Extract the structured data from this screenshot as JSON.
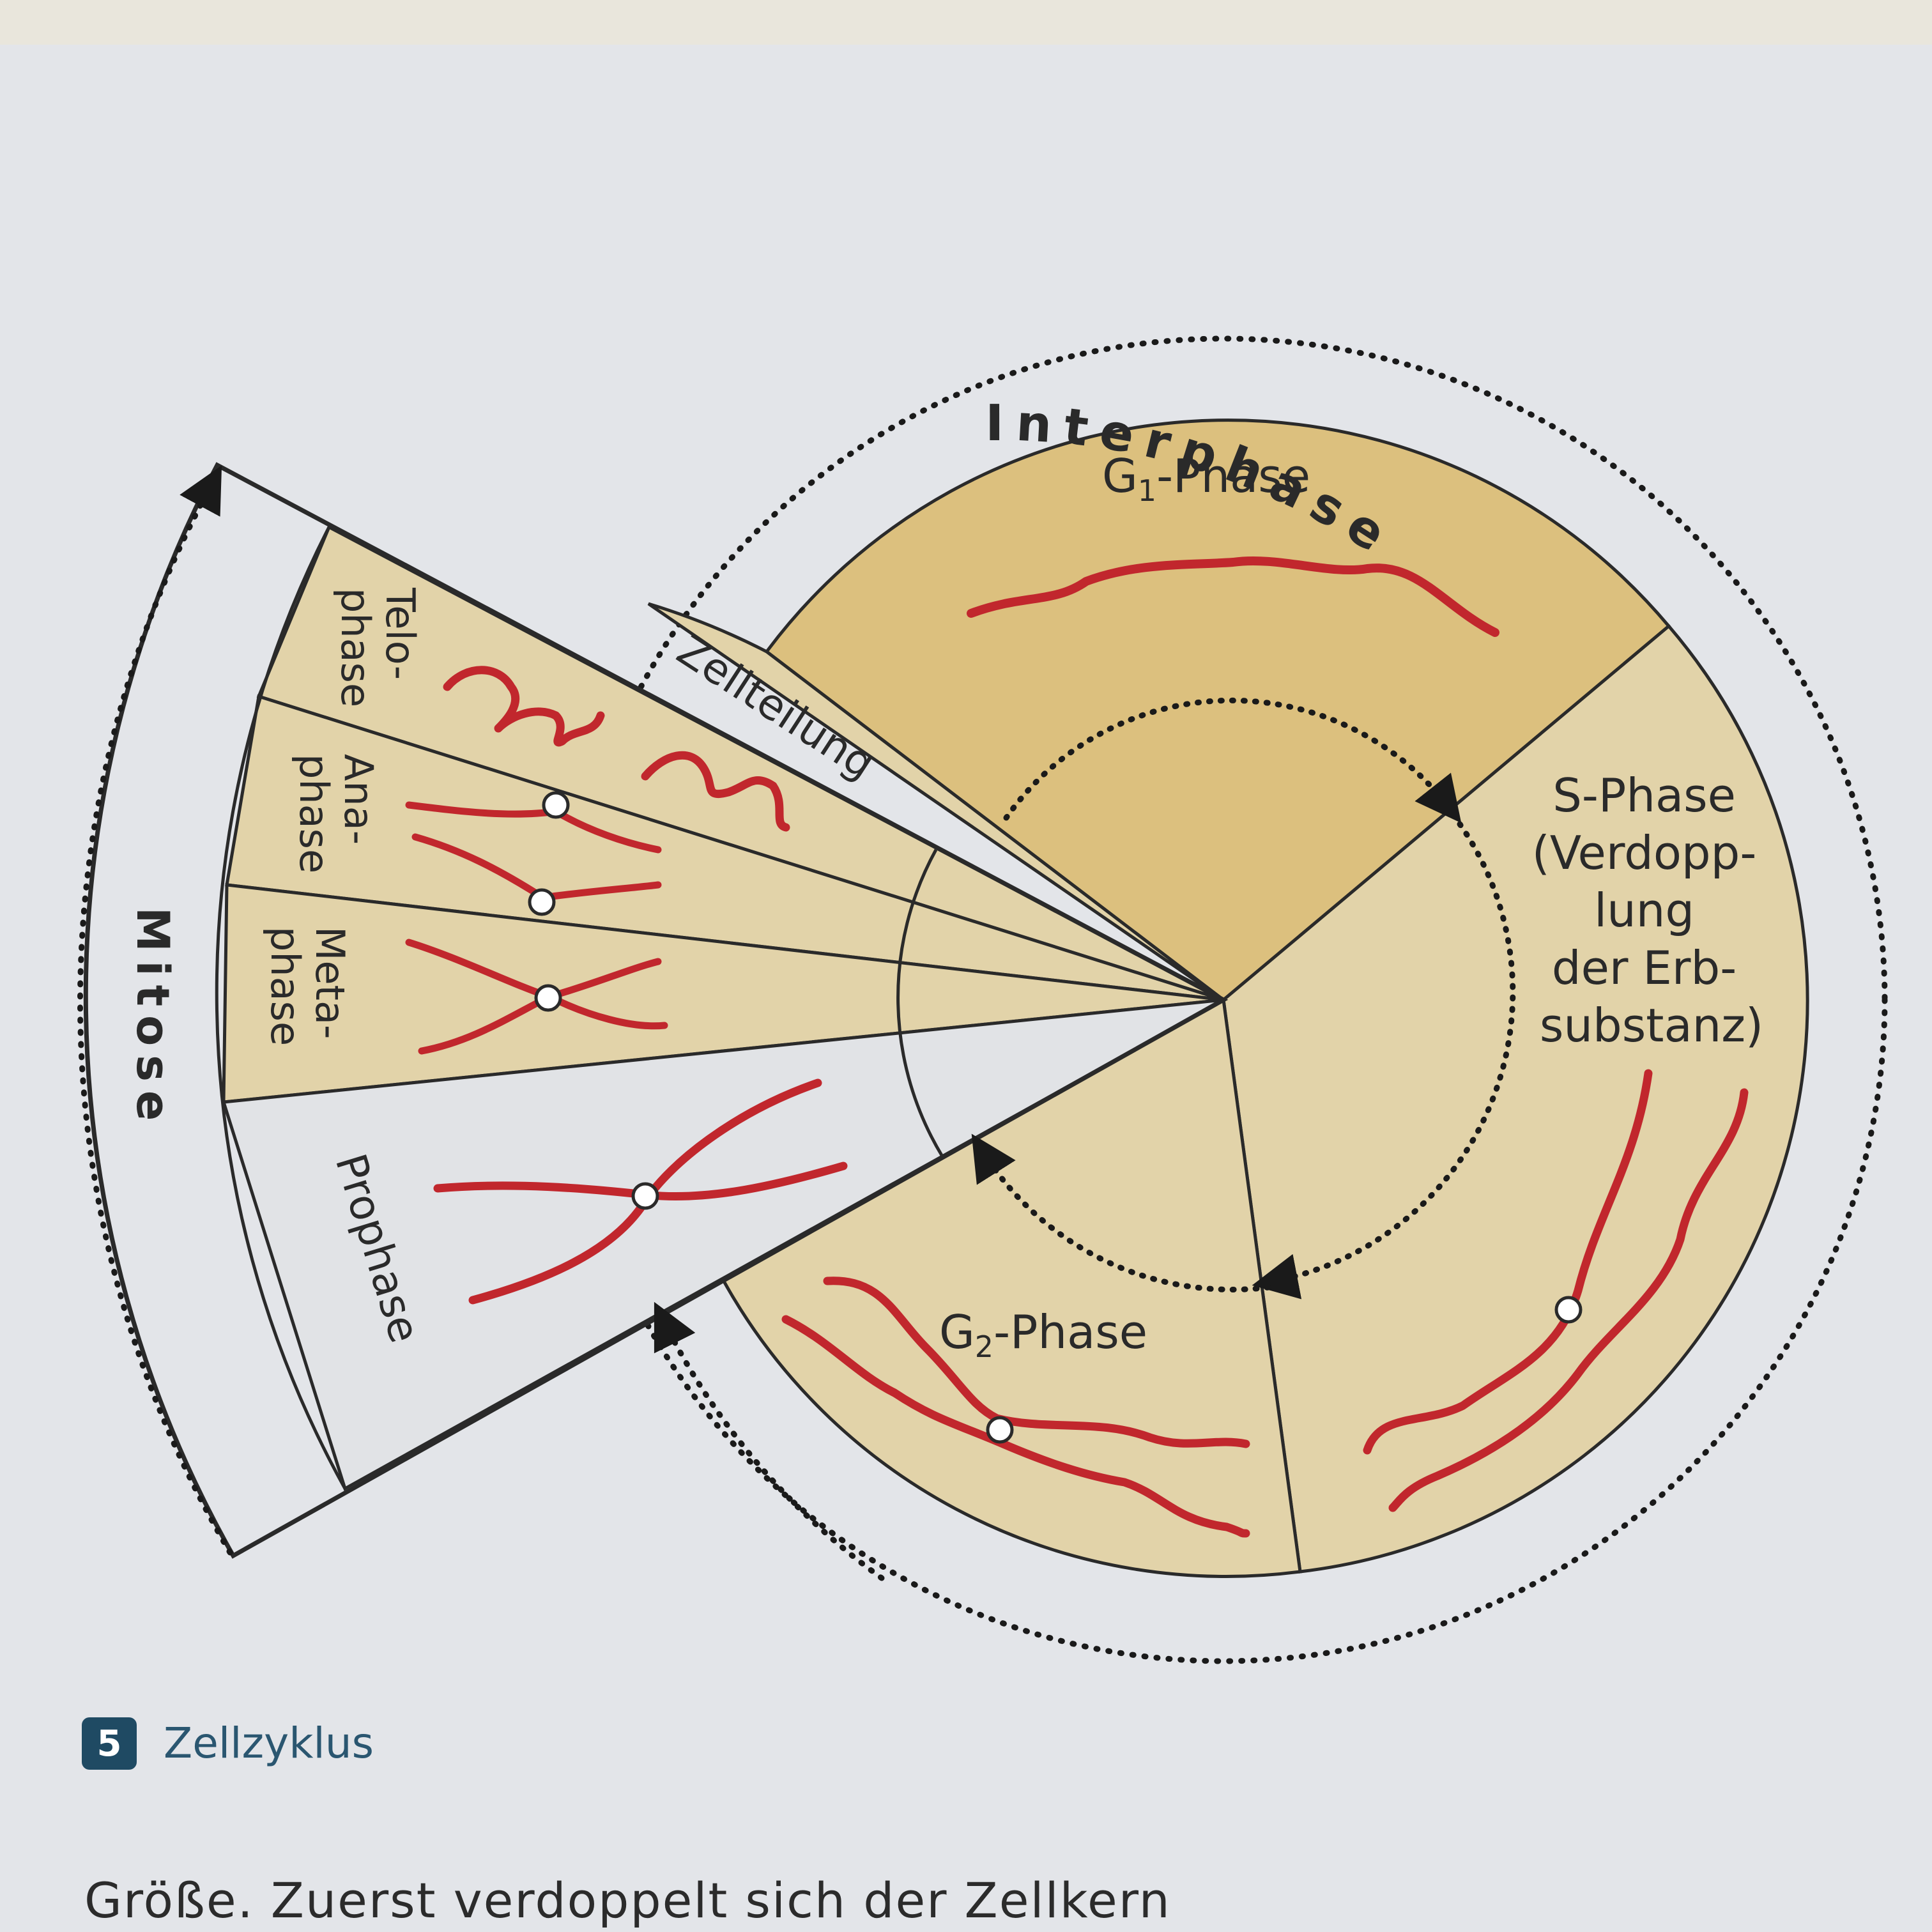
{
  "diagram": {
    "interphase_label": "Interphase",
    "mitose_label": "Mitose",
    "zellteilung_label": "Zellteilung",
    "g1": {
      "main": "G",
      "sub": "1",
      "suffix": "-Phase"
    },
    "g2": {
      "main": "G",
      "sub": "2",
      "suffix": "-Phase"
    },
    "s_phase_lines": [
      "S-Phase",
      "(Verdopp-",
      "lung",
      "der Erb-",
      "substanz)"
    ],
    "telophase_lines": [
      "Telo-",
      "phase"
    ],
    "anaphase_lines": [
      "Ana-",
      "phase"
    ],
    "metaphase_lines": [
      "Meta-",
      "phase"
    ],
    "prophase_label": "Prophase",
    "colors": {
      "g1_fill": "#dcc07e",
      "phase_fill": "#e2d3a9",
      "chromosome": "#c1272d",
      "outline": "#2a2a2a"
    }
  },
  "caption": {
    "number": "5",
    "title": "Zellzyklus"
  },
  "body_text": "Größe. Zuerst verdoppelt sich der Zellkern"
}
